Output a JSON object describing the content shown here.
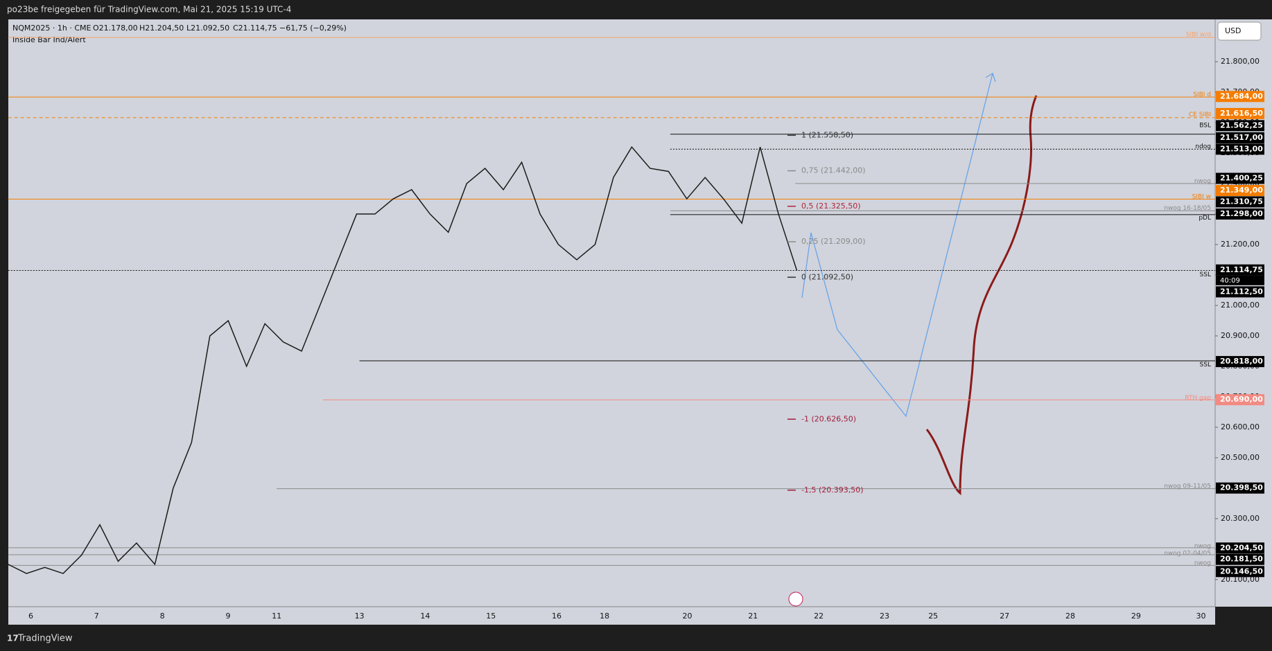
{
  "header": {
    "title": "po23be freigegeben für TradingView.com, Mai 21, 2025 15:19 UTC-4"
  },
  "legend": {
    "symbol": "NQM2025 · 1h · CME",
    "open": "O21.178,00",
    "high": "H21.204,50",
    "low": "L21.092,50",
    "close": "C21.114,75",
    "change": "−61,75 (−0,29%)",
    "indicator": "Inside Bar Ind/Alert"
  },
  "currency": "USD",
  "footer": "TradingView",
  "chart_data": {
    "type": "line",
    "color": "#1b1b1b",
    "values": [
      20150,
      20120,
      20140,
      20120,
      20180,
      20280,
      20160,
      20220,
      20150,
      20400,
      20550,
      20900,
      20950,
      20800,
      20940,
      20880,
      20850,
      21000,
      21150,
      21300,
      21300,
      21350,
      21380,
      21300,
      21240,
      21400,
      21450,
      21380,
      21470,
      21300,
      21200,
      21150,
      21200,
      21420,
      21520,
      21450,
      21440,
      21350,
      21420,
      21350,
      21270,
      21520,
      21300,
      21114.75
    ],
    "ylim": [
      20011,
      21939
    ],
    "yticks": [
      {
        "value": 21800,
        "label": "21.800,00"
      },
      {
        "value": 21700,
        "label": "21.700,00"
      },
      {
        "value": 21600,
        "label": "21.600,00"
      },
      {
        "value": 21500,
        "label": "21.500,00"
      },
      {
        "value": 21400,
        "label": "21.400,00"
      },
      {
        "value": 21300,
        "label": "21.300,00"
      },
      {
        "value": 21200,
        "label": "21.200,00"
      },
      {
        "value": 21100,
        "label": "21.100,00"
      },
      {
        "value": 21000,
        "label": "21.000,00"
      },
      {
        "value": 20900,
        "label": "20.900,00"
      },
      {
        "value": 20800,
        "label": "20.800,00"
      },
      {
        "value": 20700,
        "label": "20.700,00"
      },
      {
        "value": 20600,
        "label": "20.600,00"
      },
      {
        "value": 20500,
        "label": "20.500,00"
      },
      {
        "value": 20400,
        "label": "20.400,00"
      },
      {
        "value": 20300,
        "label": "20.300,00"
      },
      {
        "value": 20200,
        "label": "20.200,00"
      },
      {
        "value": 20100,
        "label": "20.100,00"
      }
    ],
    "x_labels": [
      "6",
      "7",
      "8",
      "9",
      "11",
      "13",
      "14",
      "15",
      "16",
      "18",
      "20",
      "21",
      "22",
      "23",
      "25",
      "27",
      "28",
      "29",
      "30"
    ],
    "levels": [
      {
        "value": 21880,
        "name": "SIBI w/d",
        "color": "#f5a36b"
      },
      {
        "value": 21684,
        "label": "21.684,00",
        "name": "SIBI d",
        "color": "#f57c00"
      },
      {
        "value": 21616.5,
        "label": "21.616,50",
        "name": "CE SIBI",
        "color": "#f57c00"
      },
      {
        "value": 21562.25,
        "label": "21.562,25",
        "name": "BSL",
        "color": "#000000"
      },
      {
        "value": 21517,
        "label": "21.517,00",
        "color": "#000000"
      },
      {
        "value": 21513,
        "label": "21.513,00",
        "name": "ndog",
        "color": "#000000"
      },
      {
        "value": 21400.25,
        "label": "21.400,25",
        "name": "nwog",
        "color": "#000000"
      },
      {
        "value": 21349,
        "label": "21.349,00",
        "name": "SIBI w",
        "color": "#f57c00"
      },
      {
        "value": 21310.75,
        "label": "21.310,75",
        "name": "nwog 16-18/05",
        "color": "#000000"
      },
      {
        "value": 21298,
        "label": "21.298,00",
        "name": "pDL",
        "color": "#000000"
      },
      {
        "value": 21114.75,
        "label": "21.114,75",
        "name": "SSL",
        "color": "#000000"
      },
      {
        "value": 21112.5,
        "label": "21.112,50",
        "color": "#000000"
      },
      {
        "value": 20818,
        "label": "20.818,00",
        "name": "SSL",
        "color": "#000000"
      },
      {
        "value": 20690,
        "label": "20.690,00",
        "name": "RTH gap",
        "color": "#f28b82"
      },
      {
        "value": 20398.5,
        "label": "20.398,50",
        "name": "nwog 09-11/05",
        "color": "#000000"
      },
      {
        "value": 20204.5,
        "label": "20.204,50",
        "name": "nwog",
        "color": "#000000"
      },
      {
        "value": 20181.5,
        "label": "20.181,50",
        "name": "nwog 02-04/05",
        "color": "#000000"
      },
      {
        "value": 20146.5,
        "label": "20.146,50",
        "name": "nwog",
        "color": "#000000"
      }
    ],
    "countdown": "40:09",
    "fib": [
      {
        "value": 21558.5,
        "label": "1 (21.558,50)",
        "color": "#333333"
      },
      {
        "value": 21442,
        "label": "0,75 (21.442,00)",
        "color": "#8a8a8a"
      },
      {
        "value": 21325.5,
        "label": "0,5 (21.325,50)",
        "color": "#b0243a"
      },
      {
        "value": 21209,
        "label": "0,25 (21.209,00)",
        "color": "#8a8a8a"
      },
      {
        "value": 21092.5,
        "label": "0 (21.092,50)",
        "color": "#333333"
      },
      {
        "value": 20626.5,
        "label": "-1 (20.626,50)",
        "color": "#a01c3c"
      },
      {
        "value": 20393.5,
        "label": "-1,5 (20.393,50)",
        "color": "#a01c3c"
      }
    ]
  }
}
